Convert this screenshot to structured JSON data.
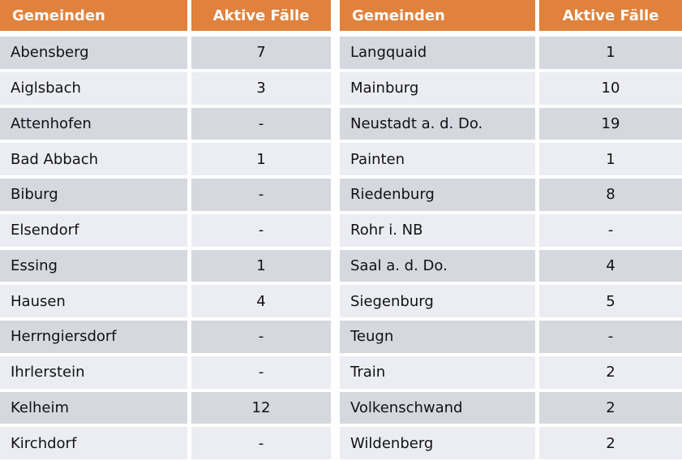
{
  "table": {
    "headers": {
      "gemeinden": "Gemeinden",
      "aktive_faelle": "Aktive Fälle"
    },
    "left_rows": [
      {
        "name": "Abensberg",
        "value": "7"
      },
      {
        "name": "Aiglsbach",
        "value": "3"
      },
      {
        "name": "Attenhofen",
        "value": "-"
      },
      {
        "name": "Bad Abbach",
        "value": "1"
      },
      {
        "name": "Biburg",
        "value": "-"
      },
      {
        "name": "Elsendorf",
        "value": "-"
      },
      {
        "name": "Essing",
        "value": "1"
      },
      {
        "name": "Hausen",
        "value": "4"
      },
      {
        "name": "Herrngiersdorf",
        "value": "-"
      },
      {
        "name": "Ihrlerstein",
        "value": "-"
      },
      {
        "name": "Kelheim",
        "value": "12"
      },
      {
        "name": "Kirchdorf",
        "value": "-"
      }
    ],
    "right_rows": [
      {
        "name": "Langquaid",
        "value": "1"
      },
      {
        "name": "Mainburg",
        "value": "10"
      },
      {
        "name": "Neustadt a. d. Do.",
        "value": "19"
      },
      {
        "name": "Painten",
        "value": "1"
      },
      {
        "name": "Riedenburg",
        "value": "8"
      },
      {
        "name": "Rohr i. NB",
        "value": "-"
      },
      {
        "name": "Saal a. d. Do.",
        "value": "4"
      },
      {
        "name": "Siegenburg",
        "value": "5"
      },
      {
        "name": "Teugn",
        "value": "-"
      },
      {
        "name": "Train",
        "value": "2"
      },
      {
        "name": "Volkenschwand",
        "value": "2"
      },
      {
        "name": "Wildenberg",
        "value": "2"
      }
    ]
  },
  "colors": {
    "header_bg": "#E0813C",
    "header_text": "#FFFFFF",
    "row_odd_bg": "#D6D8E0",
    "row_even_bg": "#ECEDF2",
    "cell_text": "#121212",
    "background": "#FFFFFF"
  }
}
